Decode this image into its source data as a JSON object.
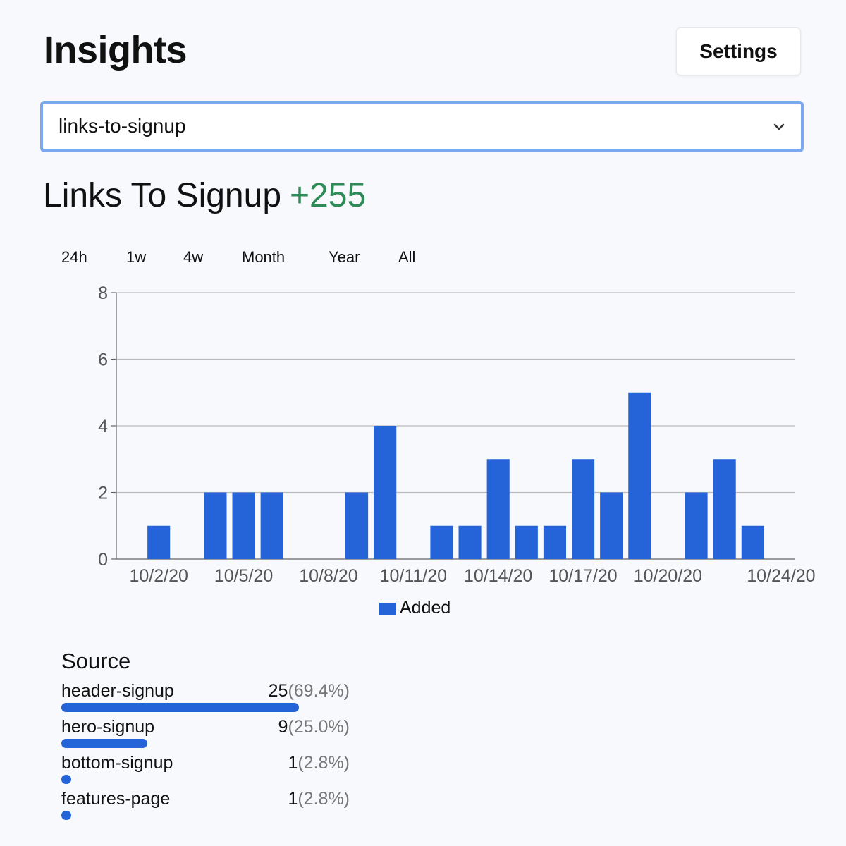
{
  "header": {
    "title": "Insights",
    "settings_label": "Settings"
  },
  "metric_select": {
    "value": "links-to-signup",
    "icon": "chevron-down-icon"
  },
  "metric": {
    "name": "Links To Signup",
    "delta": "+255",
    "delta_color": "#2e8a56"
  },
  "ranges": [
    {
      "label": "24h",
      "active": false
    },
    {
      "label": "1w",
      "active": false
    },
    {
      "label": "4w",
      "active": false
    },
    {
      "label": "Month",
      "active": true
    },
    {
      "label": "Year",
      "active": false
    },
    {
      "label": "All",
      "active": false
    }
  ],
  "chart_data": {
    "type": "bar",
    "categories": [
      "10/1/20",
      "10/2/20",
      "10/3/20",
      "10/4/20",
      "10/5/20",
      "10/6/20",
      "10/7/20",
      "10/8/20",
      "10/9/20",
      "10/10/20",
      "10/11/20",
      "10/12/20",
      "10/13/20",
      "10/14/20",
      "10/15/20",
      "10/16/20",
      "10/17/20",
      "10/18/20",
      "10/19/20",
      "10/20/20",
      "10/21/20",
      "10/22/20",
      "10/23/20",
      "10/24/20"
    ],
    "tick_labels": [
      "10/2/20",
      "10/5/20",
      "10/8/20",
      "10/11/20",
      "10/14/20",
      "10/17/20",
      "10/20/20",
      "10/24/20"
    ],
    "series": [
      {
        "name": "Added",
        "color": "#2563d9",
        "values": [
          0,
          1,
          0,
          2,
          2,
          2,
          0,
          0,
          2,
          4,
          0,
          1,
          1,
          3,
          1,
          1,
          3,
          2,
          5,
          0,
          2,
          3,
          1,
          0
        ]
      }
    ],
    "ylim": [
      0,
      8
    ],
    "yticks": [
      0,
      2,
      4,
      6,
      8
    ],
    "grid": true,
    "legend": "bottom-center"
  },
  "source": {
    "title": "Source",
    "bar_color": "#2563d9",
    "rows": [
      {
        "name": "header-signup",
        "count": "25",
        "pct": "(69.4%)",
        "share": 0.694
      },
      {
        "name": "hero-signup",
        "count": "9",
        "pct": "(25.0%)",
        "share": 0.25
      },
      {
        "name": "bottom-signup",
        "count": "1",
        "pct": "(2.8%)",
        "share": 0.028
      },
      {
        "name": "features-page",
        "count": "1",
        "pct": "(2.8%)",
        "share": 0.028
      }
    ]
  }
}
